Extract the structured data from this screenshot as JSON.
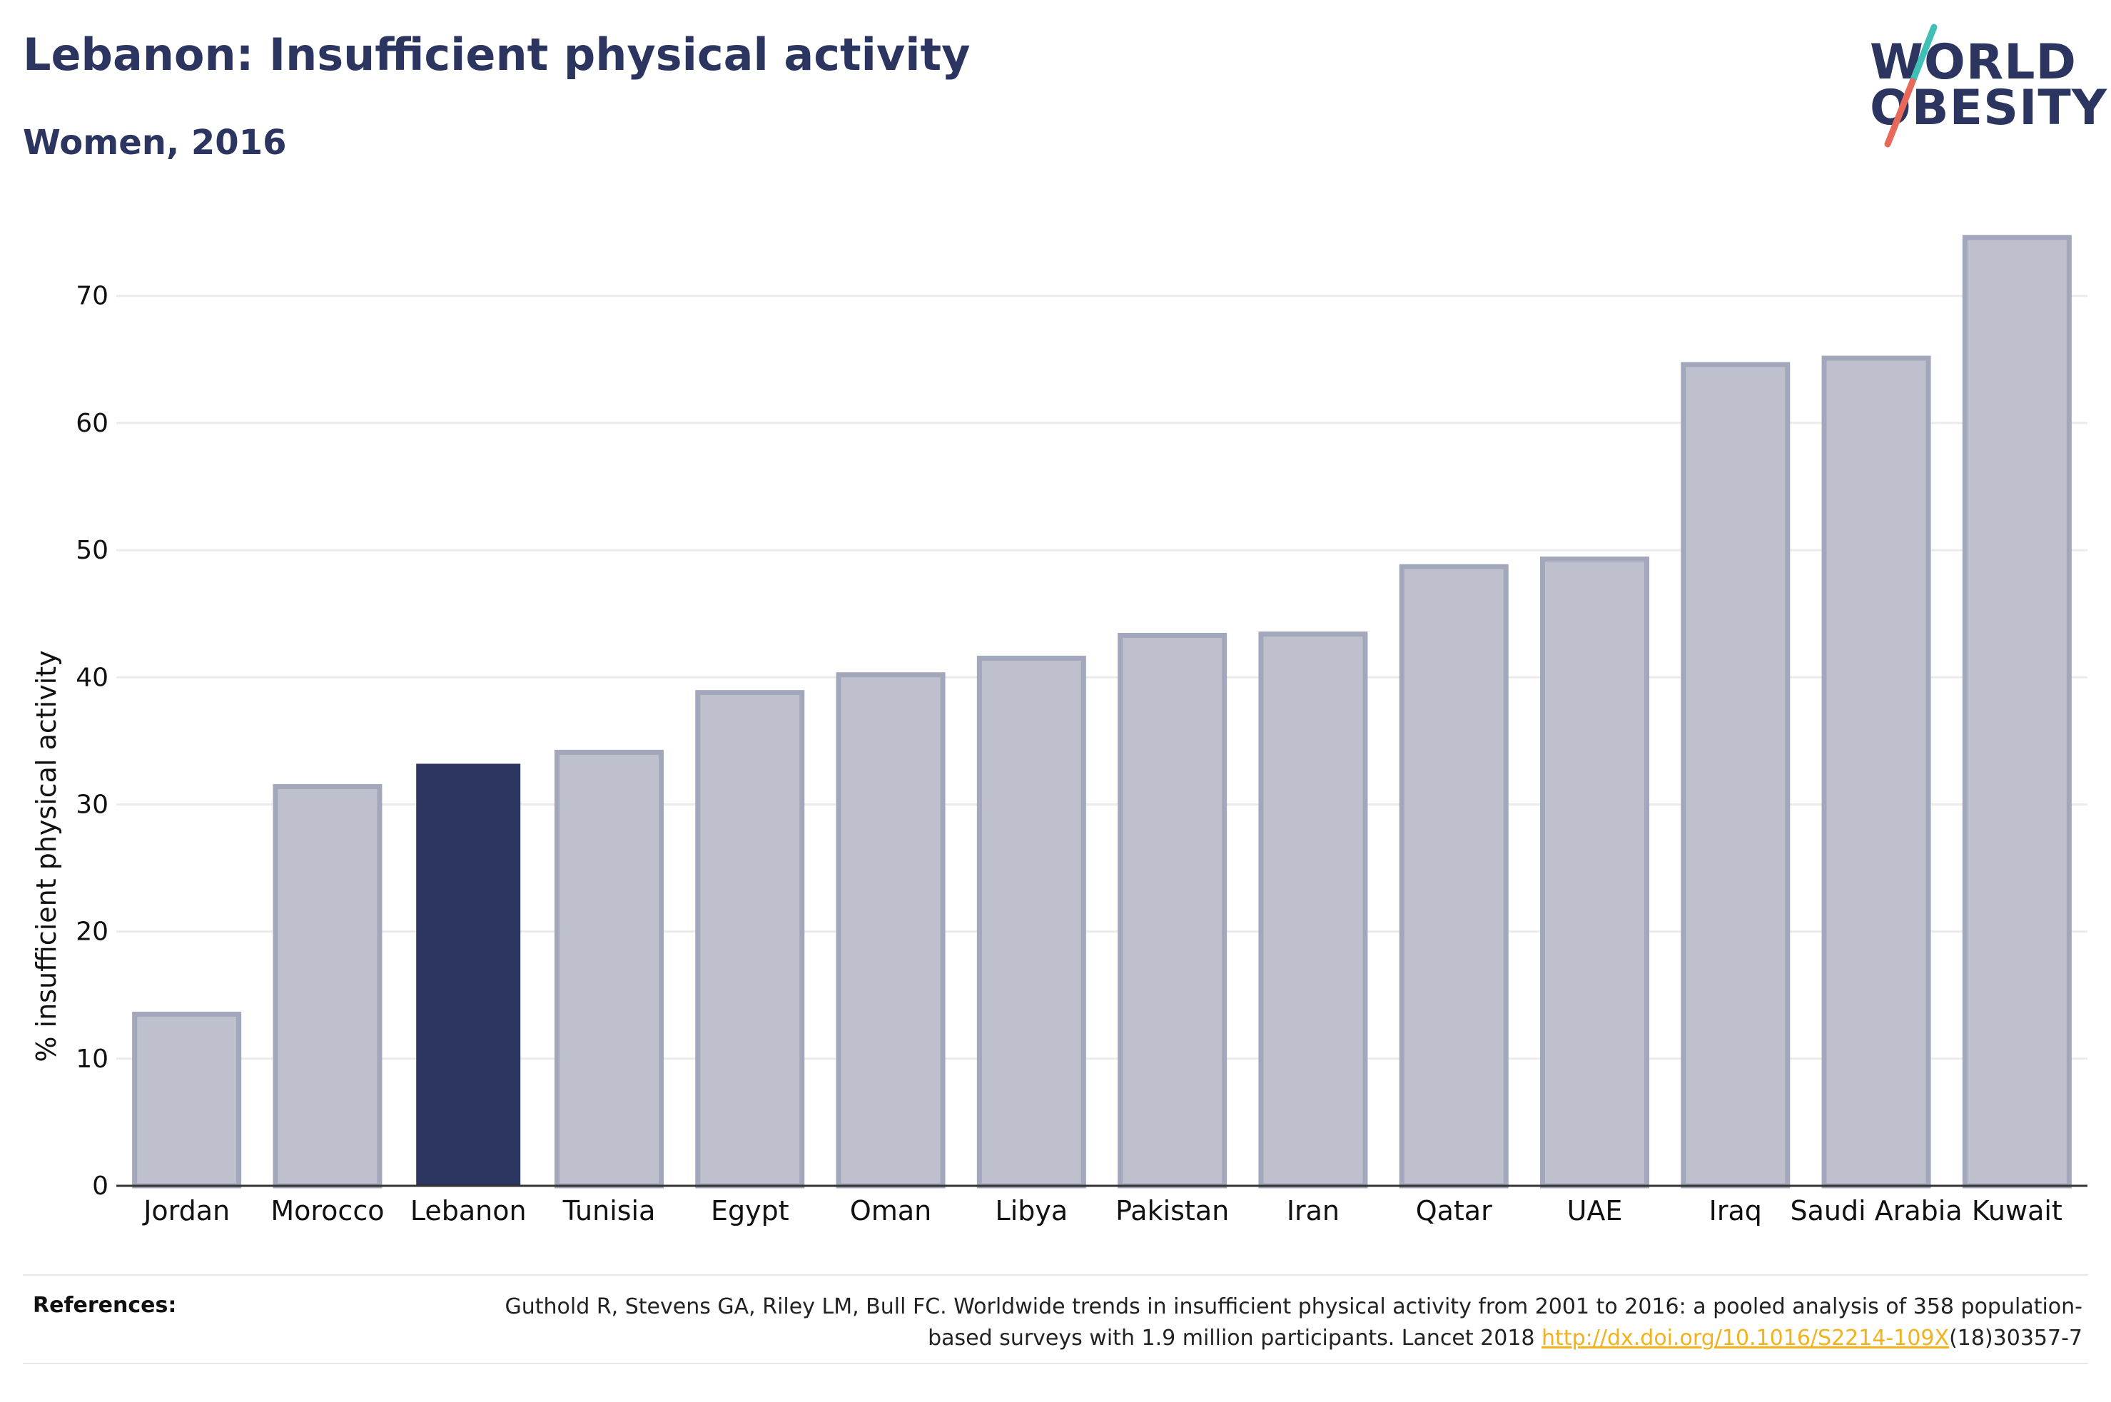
{
  "header": {
    "title": "Lebanon: Insufficient physical activity",
    "subtitle": "Women, 2016"
  },
  "logo": {
    "line1": "WORLD",
    "line2": "OBESITY",
    "colors": {
      "text": "#2b3560",
      "slash_top": "#3fbfb6",
      "slash_bottom": "#e8695a"
    }
  },
  "chart_data": {
    "type": "bar",
    "title": "Lebanon: Insufficient physical activity",
    "subtitle": "Women, 2016",
    "xlabel": "",
    "ylabel": "% insufficient physical activity",
    "ylim": [
      0,
      77
    ],
    "yticks": [
      0,
      10,
      20,
      30,
      40,
      50,
      60,
      70
    ],
    "grid": true,
    "legend": "none",
    "categories": [
      "Jordan",
      "Morocco",
      "Lebanon",
      "Tunisia",
      "Egypt",
      "Oman",
      "Libya",
      "Pakistan",
      "Iran",
      "Qatar",
      "UAE",
      "Iraq",
      "Saudi Arabia",
      "Kuwait"
    ],
    "values": [
      13.5,
      31.4,
      33.2,
      34.1,
      38.8,
      40.2,
      41.5,
      43.3,
      43.4,
      48.7,
      49.3,
      64.6,
      65.1,
      74.6
    ],
    "highlight": "Lebanon",
    "colors": {
      "highlight": "#2b3560",
      "bar": "#bec1cd",
      "bar_edge": "#a2a7bb",
      "grid": "#ebebeb",
      "axis": "#333333"
    }
  },
  "references": {
    "label": "References:",
    "text_before": "Guthold R, Stevens GA, Riley LM, Bull FC. Worldwide trends in insufficient physical activity from 2001 to 2016: a pooled analysis of 358 population-based surveys with 1.9 million participants. Lancet 2018 ",
    "link": "http://dx.doi.org/10.1016/S2214-109X",
    "text_after": "(18)30357-7"
  }
}
